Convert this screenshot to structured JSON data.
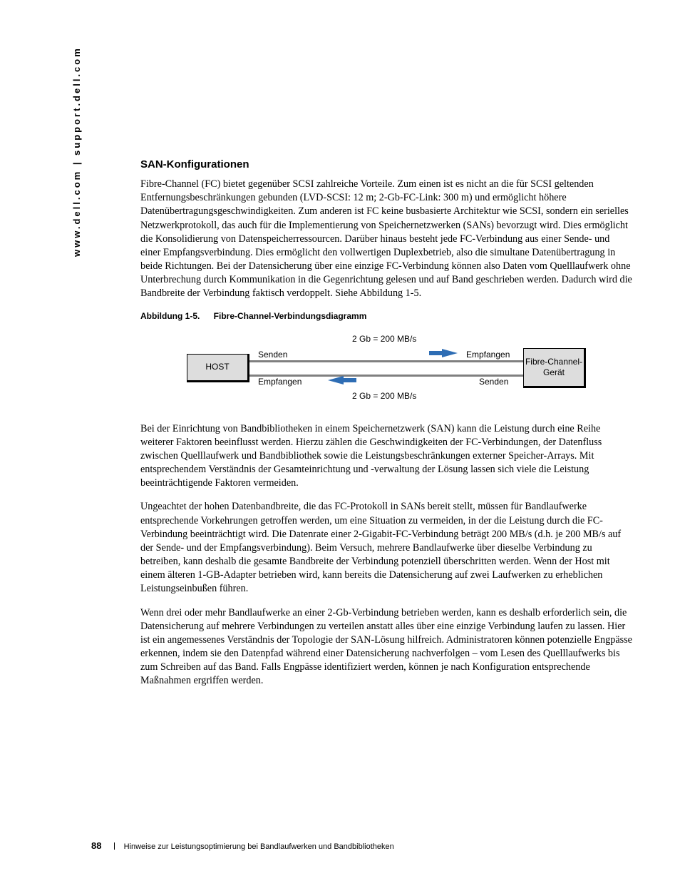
{
  "side_url": "www.dell.com | support.dell.com",
  "heading": "SAN-Konfigurationen",
  "para1": "Fibre-Channel (FC) bietet gegenüber SCSI zahlreiche Vorteile. Zum einen ist es nicht an die für SCSI geltenden Entfernungsbeschränkungen gebunden (LVD-SCSI: 12 m; 2-Gb-FC-Link: 300 m) und ermöglicht höhere Datenübertragungsgeschwindigkeiten. Zum anderen ist FC keine busbasierte Architektur wie SCSI, sondern ein serielles Netzwerkprotokoll, das auch für die Implementierung von Speichernetzwerken (SANs) bevorzugt wird. Dies ermöglicht die Konsolidierung von Datenspeicherressourcen. Darüber hinaus besteht jede FC-Verbindung aus einer Sende- und einer Empfangsverbindung. Dies ermöglicht den vollwertigen Duplexbetrieb, also die simultane Datenübertragung in beide Richtungen. Bei der Datensicherung über eine einzige FC-Verbindung können also Daten vom Quelllaufwerk ohne Unterbrechung durch Kommunikation in die Gegenrichtung gelesen und auf Band geschrieben werden. Dadurch wird die Bandbreite der Verbindung faktisch verdoppelt. Siehe Abbildung 1-5.",
  "fig": {
    "num": "Abbildung 1-5.",
    "title": "Fibre-Channel-Verbindungsdiagramm",
    "host": "HOST",
    "device": "Fibre-Channel-Gerät",
    "senden": "Senden",
    "empfangen": "Empfangen",
    "rate": "2 Gb = 200 MB/s",
    "arrow_color": "#2e6db4",
    "node_bg": "#dddddd",
    "link_color": "#808080"
  },
  "para2": "Bei der Einrichtung von Bandbibliotheken in einem Speichernetzwerk (SAN) kann die Leistung durch eine Reihe weiterer Faktoren beeinflusst werden. Hierzu zählen die Geschwindigkeiten der FC-Verbindungen, der Datenfluss zwischen Quelllaufwerk und Bandbibliothek sowie die Leistungsbeschränkungen externer Speicher-Arrays. Mit entsprechendem Verständnis der Gesamteinrichtung und -verwaltung der Lösung lassen sich viele die Leistung beeinträchtigende Faktoren vermeiden.",
  "para3": "Ungeachtet der hohen Datenbandbreite, die das FC-Protokoll in SANs bereit stellt, müssen für Bandlaufwerke entsprechende Vorkehrungen getroffen werden, um eine Situation zu vermeiden, in der die Leistung durch die FC-Verbindung beeinträchtigt wird. Die Datenrate einer 2-Gigabit-FC-Verbindung beträgt 200 MB/s (d.h. je 200 MB/s auf der Sende- und der Empfangsverbindung). Beim Versuch, mehrere Bandlaufwerke über dieselbe Verbindung zu betreiben, kann deshalb die gesamte Bandbreite der Verbindung potenziell überschritten werden. Wenn der Host mit einem älteren 1-GB-Adapter betrieben wird, kann bereits die Datensicherung auf zwei Laufwerken zu erheblichen Leistungseinbußen führen.",
  "para4": "Wenn drei oder mehr Bandlaufwerke an einer 2-Gb-Verbindung betrieben werden, kann es deshalb erforderlich sein, die Datensicherung auf mehrere Verbindungen zu verteilen anstatt alles über eine einzige Verbindung laufen zu lassen. Hier ist ein angemessenes Verständnis der Topologie der SAN-Lösung hilfreich. Administratoren können potenzielle Engpässe erkennen, indem sie den Datenpfad während einer Datensicherung nachverfolgen – vom Lesen des Quelllaufwerks bis zum Schreiben auf das Band. Falls Engpässe identifiziert werden, können je nach Konfiguration entsprechende Maßnahmen ergriffen werden.",
  "footer": {
    "page": "88",
    "title": "Hinweise zur Leistungsoptimierung bei Bandlaufwerken und Bandbibliotheken"
  }
}
